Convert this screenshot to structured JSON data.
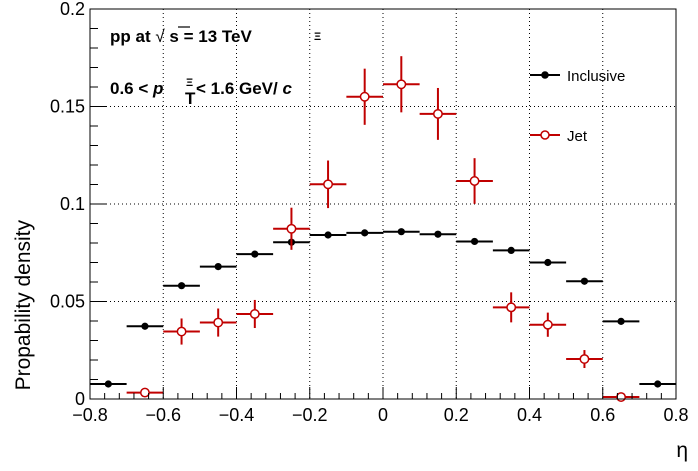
{
  "chart_data": {
    "type": "scatter",
    "xlabel": "η",
    "ylabel": "Propability density",
    "xlim": [
      -0.8,
      0.8
    ],
    "ylim": [
      0,
      0.2
    ],
    "x_ticks": [
      "−0.8",
      "−0.6",
      "−0.4",
      "−0.2",
      "0",
      "0.2",
      "0.4",
      "0.6",
      "0.8"
    ],
    "y_ticks": [
      "0",
      "0.05",
      "0.1",
      "0.15",
      "0.2"
    ],
    "grid": true,
    "legend_position": "top-right",
    "annotations": {
      "line1_prefix": "pp at ",
      "sqrt_symbol": "√",
      "sqrt_arg": "s",
      "line1_suffix": " = 13 TeV",
      "line1_marker": "Ξ",
      "line2_prefix": "0.6 < ",
      "line2_var": "p",
      "line2_sub": "T",
      "line2_sup": "Ξ",
      "line2_suffix": " < 1.6 GeV/",
      "line2_unit": "c"
    },
    "series": [
      {
        "name": "Inclusive",
        "color": "#000000",
        "marker": "filled-circle",
        "x": [
          -0.75,
          -0.65,
          -0.55,
          -0.45,
          -0.35,
          -0.25,
          -0.15,
          -0.05,
          0.05,
          0.15,
          0.25,
          0.35,
          0.45,
          0.55,
          0.65,
          0.75
        ],
        "xerr": [
          0.05,
          0.05,
          0.05,
          0.05,
          0.05,
          0.05,
          0.05,
          0.05,
          0.05,
          0.05,
          0.05,
          0.05,
          0.05,
          0.05,
          0.05,
          0.05
        ],
        "y": [
          0.0077,
          0.0373,
          0.0581,
          0.0679,
          0.0743,
          0.0804,
          0.0841,
          0.0852,
          0.0858,
          0.0845,
          0.0808,
          0.0762,
          0.07,
          0.0604,
          0.0398,
          0.0077
        ],
        "yerr": [
          0.0005,
          0.0008,
          0.001,
          0.001,
          0.001,
          0.001,
          0.001,
          0.001,
          0.001,
          0.001,
          0.001,
          0.001,
          0.001,
          0.001,
          0.0008,
          0.0005
        ]
      },
      {
        "name": "Jet",
        "color": "#c00000",
        "marker": "open-circle",
        "x": [
          -0.65,
          -0.55,
          -0.45,
          -0.35,
          -0.25,
          -0.15,
          -0.05,
          0.05,
          0.15,
          0.25,
          0.35,
          0.45,
          0.55,
          0.65
        ],
        "xerr": [
          0.05,
          0.05,
          0.05,
          0.05,
          0.05,
          0.05,
          0.05,
          0.05,
          0.05,
          0.05,
          0.05,
          0.05,
          0.05,
          0.05
        ],
        "y": [
          0.0033,
          0.0346,
          0.0392,
          0.0436,
          0.0873,
          0.1101,
          0.155,
          0.1614,
          0.1462,
          0.1118,
          0.047,
          0.0381,
          0.0205,
          0.001
        ],
        "yerr": [
          0.002,
          0.0067,
          0.0072,
          0.0072,
          0.0108,
          0.0122,
          0.0144,
          0.0144,
          0.0133,
          0.0117,
          0.0077,
          0.0062,
          0.0046,
          0.0015
        ]
      }
    ]
  }
}
